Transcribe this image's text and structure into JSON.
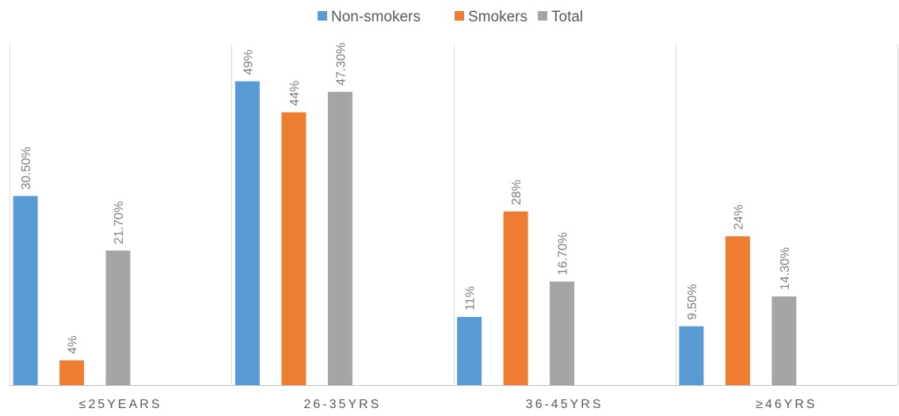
{
  "chart_data": {
    "type": "bar",
    "categories": [
      "≤25YEARS",
      "26-35YRS",
      "36-45YRS",
      "≥46YRS"
    ],
    "series": [
      {
        "name": "Non-smokers",
        "color": "#5b9bd5",
        "values": [
          30.5,
          49,
          11,
          9.5
        ],
        "labels": [
          "30.50%",
          "49%",
          "11%",
          "9.50%"
        ]
      },
      {
        "name": "Smokers",
        "color": "#ed7d31",
        "values": [
          4,
          44,
          28,
          24
        ],
        "labels": [
          "4%",
          "44%",
          "28%",
          "24%"
        ]
      },
      {
        "name": "Total",
        "color": "#a5a5a5",
        "values": [
          21.7,
          47.3,
          16.7,
          14.3
        ],
        "labels": [
          "21.70%",
          "47.30%",
          "16.70%",
          "14.30%"
        ]
      }
    ],
    "ylim": [
      0,
      57
    ],
    "title": "",
    "xlabel": "",
    "ylabel": "",
    "legend_position": "top",
    "gridlines": "vertical category separators",
    "data_labels": "rotated vertical above bars"
  }
}
